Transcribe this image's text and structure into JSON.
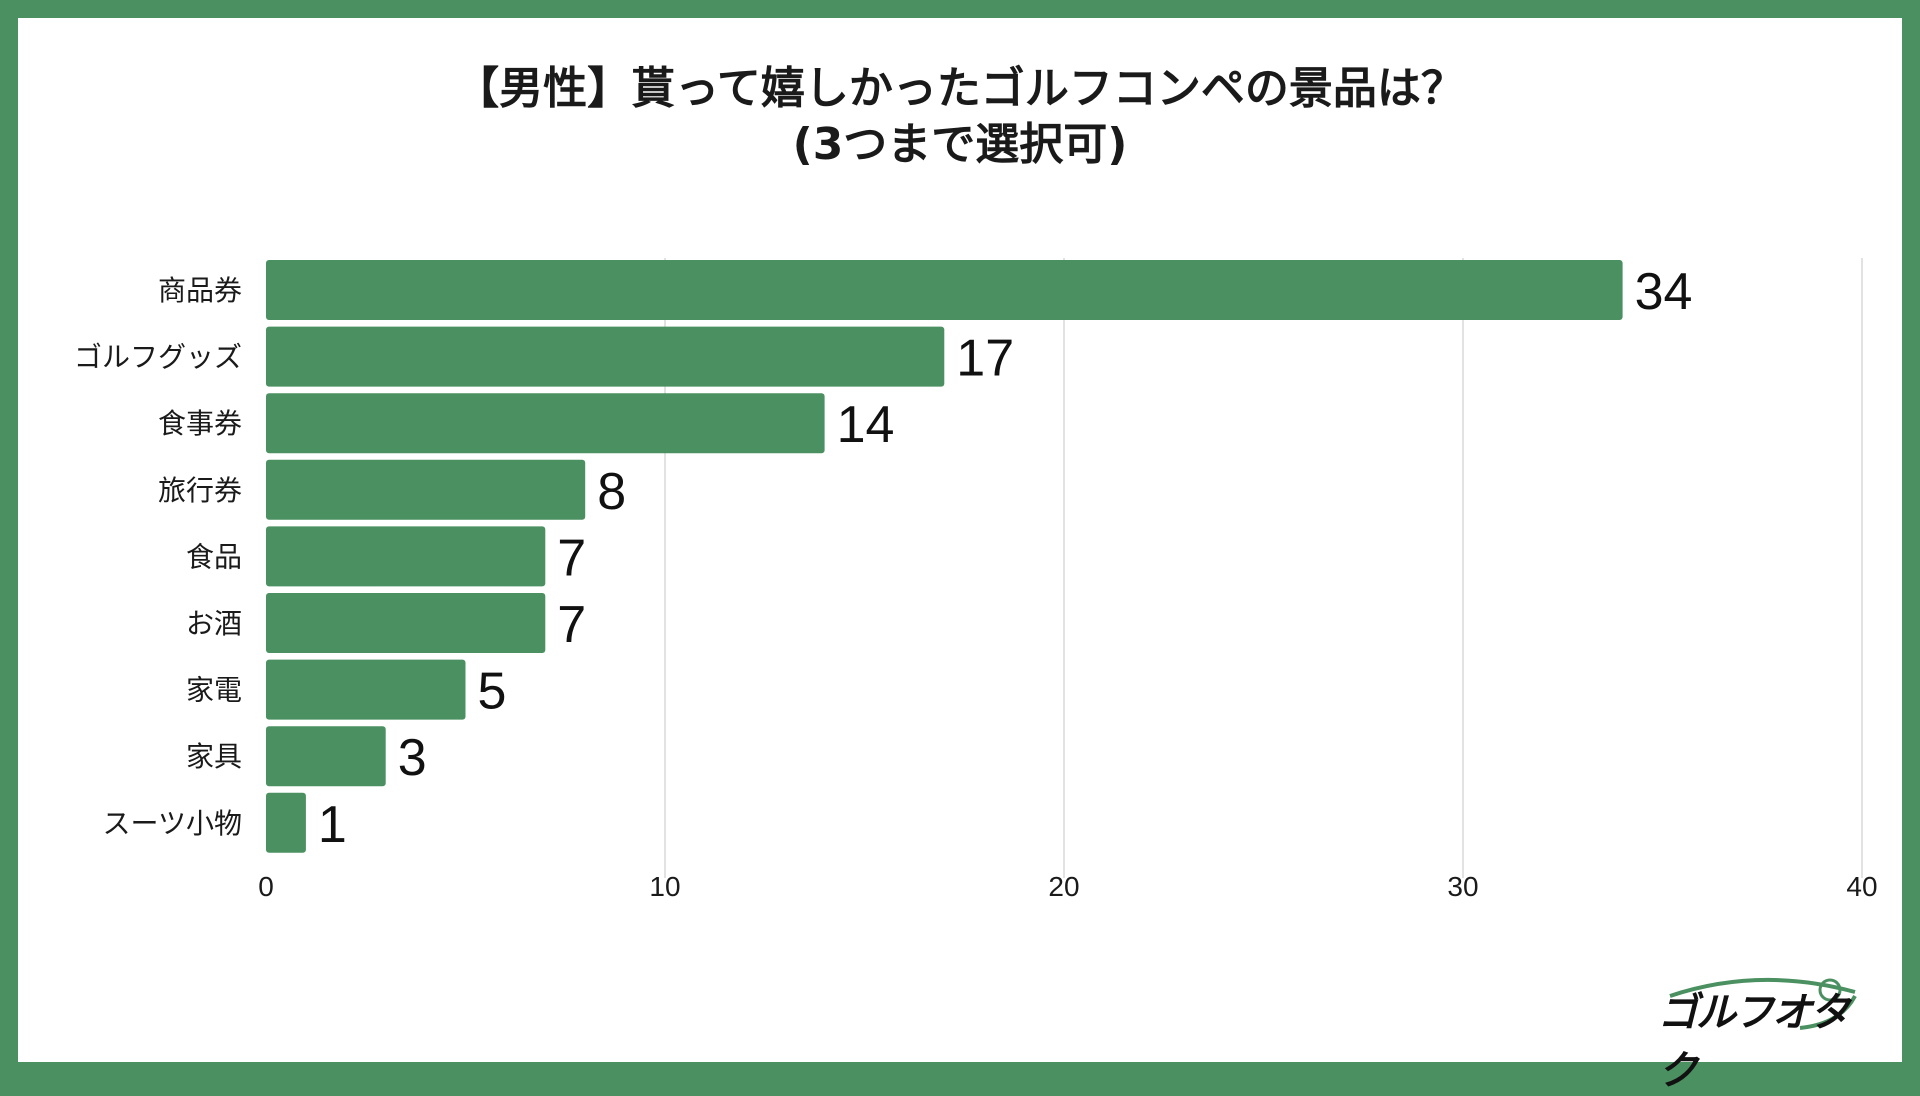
{
  "title_line1": "【男性】貰って嬉しかったゴルフコンペの景品は？",
  "title_line2": "(3つまで選択可)",
  "logo": {
    "text": "ゴルフオタク"
  },
  "colors": {
    "bar": "#4a9060",
    "grid": "#d9d9d9",
    "frame": "#4a9060"
  },
  "chart_data": {
    "type": "bar",
    "orientation": "horizontal",
    "title": "【男性】貰って嬉しかったゴルフコンペの景品は？ (3つまで選択可)",
    "categories": [
      "商品券",
      "ゴルフグッズ",
      "食事券",
      "旅行券",
      "食品",
      "お酒",
      "家電",
      "家具",
      "スーツ小物"
    ],
    "values": [
      34,
      17,
      14,
      8,
      7,
      7,
      5,
      3,
      1
    ],
    "value_labels": [
      "34",
      "17",
      "14",
      "8",
      "7",
      "7",
      "5",
      "3",
      "1"
    ],
    "xlim": [
      0,
      40
    ],
    "xticks": [
      0,
      10,
      20,
      30,
      40
    ],
    "xtick_labels": [
      "0",
      "10",
      "20",
      "30",
      "40"
    ],
    "xlabel": "",
    "ylabel": "",
    "grid": true
  }
}
